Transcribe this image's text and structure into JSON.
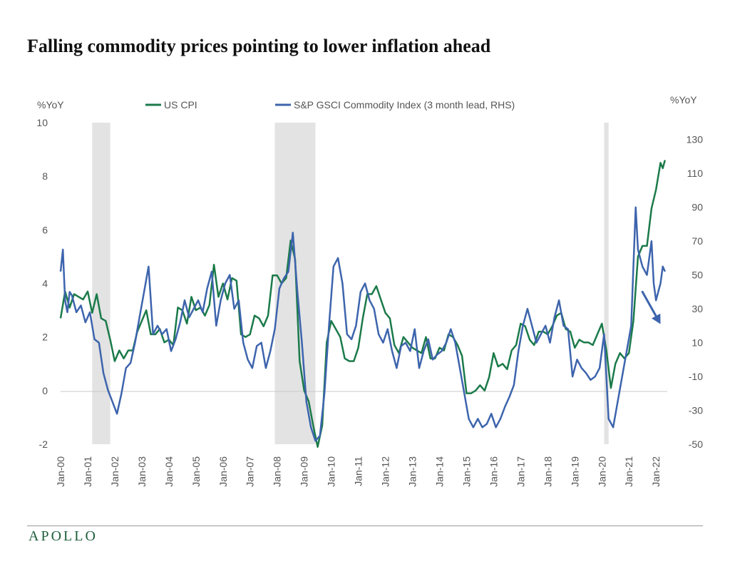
{
  "title": "Falling commodity prices pointing to lower inflation ahead",
  "brand": "APOLLO",
  "colors": {
    "cpi": "#1b7a4a",
    "gsci": "#3d64ad",
    "recession": "#e3e3e3",
    "axis": "#c8c8c8",
    "tick": "#555555"
  },
  "chart_data": {
    "type": "line",
    "title": "Falling commodity prices pointing to lower inflation ahead",
    "left_unit": "%YoY",
    "right_unit": "%YoY",
    "y_left": {
      "min": -2,
      "max": 10,
      "ticks": [
        "-2",
        "0",
        "2",
        "4",
        "6",
        "8",
        "10"
      ]
    },
    "y_right": {
      "min": -50,
      "max": 140,
      "ticks": [
        "-50",
        "-30",
        "-10",
        "10",
        "30",
        "50",
        "70",
        "90",
        "110",
        "130"
      ]
    },
    "x_range": [
      "2000-01",
      "2022-06"
    ],
    "x_ticks": [
      "Jan-00",
      "Jan-01",
      "Jan-02",
      "Jan-03",
      "Jan-04",
      "Jan-05",
      "Jan-06",
      "Jan-07",
      "Jan-08",
      "Jan-09",
      "Jan-10",
      "Jan-11",
      "Jan-12",
      "Jan-13",
      "Jan-14",
      "Jan-15",
      "Jan-16",
      "Jan-17",
      "Jan-18",
      "Jan-19",
      "Jan-20",
      "Jan-21",
      "Jan-22"
    ],
    "recessions": [
      [
        "2001-03",
        "2001-11"
      ],
      [
        "2007-12",
        "2009-06"
      ],
      [
        "2020-02",
        "2020-04"
      ]
    ],
    "legend_placement": "top",
    "grid": false,
    "annotation": "down-arrow",
    "arrow": {
      "from": [
        "2021-07",
        40
      ],
      "to": [
        "2022-03",
        21
      ]
    },
    "series": [
      {
        "name": "US CPI",
        "axis": "left",
        "color": "#1b7a4a",
        "points": [
          [
            "2000-01",
            2.7
          ],
          [
            "2000-03",
            3.7
          ],
          [
            "2000-05",
            3.1
          ],
          [
            "2000-07",
            3.6
          ],
          [
            "2000-09",
            3.5
          ],
          [
            "2000-11",
            3.4
          ],
          [
            "2001-01",
            3.7
          ],
          [
            "2001-03",
            2.9
          ],
          [
            "2001-05",
            3.6
          ],
          [
            "2001-07",
            2.7
          ],
          [
            "2001-09",
            2.6
          ],
          [
            "2001-11",
            1.9
          ],
          [
            "2002-01",
            1.1
          ],
          [
            "2002-03",
            1.5
          ],
          [
            "2002-05",
            1.2
          ],
          [
            "2002-07",
            1.5
          ],
          [
            "2002-09",
            1.5
          ],
          [
            "2002-11",
            2.2
          ],
          [
            "2003-01",
            2.6
          ],
          [
            "2003-03",
            3.0
          ],
          [
            "2003-05",
            2.1
          ],
          [
            "2003-07",
            2.1
          ],
          [
            "2003-09",
            2.3
          ],
          [
            "2003-11",
            1.8
          ],
          [
            "2004-01",
            1.9
          ],
          [
            "2004-03",
            1.7
          ],
          [
            "2004-05",
            3.1
          ],
          [
            "2004-07",
            3.0
          ],
          [
            "2004-09",
            2.5
          ],
          [
            "2004-11",
            3.5
          ],
          [
            "2005-01",
            3.0
          ],
          [
            "2005-03",
            3.1
          ],
          [
            "2005-05",
            2.8
          ],
          [
            "2005-07",
            3.2
          ],
          [
            "2005-09",
            4.7
          ],
          [
            "2005-11",
            3.5
          ],
          [
            "2006-01",
            4.0
          ],
          [
            "2006-03",
            3.4
          ],
          [
            "2006-05",
            4.2
          ],
          [
            "2006-07",
            4.1
          ],
          [
            "2006-09",
            2.1
          ],
          [
            "2006-11",
            2.0
          ],
          [
            "2007-01",
            2.1
          ],
          [
            "2007-03",
            2.8
          ],
          [
            "2007-05",
            2.7
          ],
          [
            "2007-07",
            2.4
          ],
          [
            "2007-09",
            2.8
          ],
          [
            "2007-11",
            4.3
          ],
          [
            "2008-01",
            4.3
          ],
          [
            "2008-03",
            4.0
          ],
          [
            "2008-05",
            4.2
          ],
          [
            "2008-07",
            5.6
          ],
          [
            "2008-09",
            4.9
          ],
          [
            "2008-11",
            1.1
          ],
          [
            "2009-01",
            0.0
          ],
          [
            "2009-03",
            -0.4
          ],
          [
            "2009-05",
            -1.3
          ],
          [
            "2009-07",
            -2.1
          ],
          [
            "2009-09",
            -1.3
          ],
          [
            "2009-11",
            1.8
          ],
          [
            "2010-01",
            2.6
          ],
          [
            "2010-03",
            2.3
          ],
          [
            "2010-05",
            2.0
          ],
          [
            "2010-07",
            1.2
          ],
          [
            "2010-09",
            1.1
          ],
          [
            "2010-11",
            1.1
          ],
          [
            "2011-01",
            1.6
          ],
          [
            "2011-03",
            2.7
          ],
          [
            "2011-05",
            3.6
          ],
          [
            "2011-07",
            3.6
          ],
          [
            "2011-09",
            3.9
          ],
          [
            "2011-11",
            3.4
          ],
          [
            "2012-01",
            2.9
          ],
          [
            "2012-03",
            2.7
          ],
          [
            "2012-05",
            1.7
          ],
          [
            "2012-07",
            1.4
          ],
          [
            "2012-09",
            2.0
          ],
          [
            "2012-11",
            1.8
          ],
          [
            "2013-01",
            1.6
          ],
          [
            "2013-03",
            1.5
          ],
          [
            "2013-05",
            1.4
          ],
          [
            "2013-07",
            2.0
          ],
          [
            "2013-09",
            1.2
          ],
          [
            "2013-11",
            1.2
          ],
          [
            "2014-01",
            1.6
          ],
          [
            "2014-03",
            1.5
          ],
          [
            "2014-05",
            2.1
          ],
          [
            "2014-07",
            2.0
          ],
          [
            "2014-09",
            1.7
          ],
          [
            "2014-11",
            1.3
          ],
          [
            "2015-01",
            -0.1
          ],
          [
            "2015-03",
            -0.1
          ],
          [
            "2015-05",
            0.0
          ],
          [
            "2015-07",
            0.2
          ],
          [
            "2015-09",
            0.0
          ],
          [
            "2015-11",
            0.5
          ],
          [
            "2016-01",
            1.4
          ],
          [
            "2016-03",
            0.9
          ],
          [
            "2016-05",
            1.0
          ],
          [
            "2016-07",
            0.8
          ],
          [
            "2016-09",
            1.5
          ],
          [
            "2016-11",
            1.7
          ],
          [
            "2017-01",
            2.5
          ],
          [
            "2017-03",
            2.4
          ],
          [
            "2017-05",
            1.9
          ],
          [
            "2017-07",
            1.7
          ],
          [
            "2017-09",
            2.2
          ],
          [
            "2017-11",
            2.2
          ],
          [
            "2018-01",
            2.1
          ],
          [
            "2018-03",
            2.4
          ],
          [
            "2018-05",
            2.8
          ],
          [
            "2018-07",
            2.9
          ],
          [
            "2018-09",
            2.3
          ],
          [
            "2018-11",
            2.2
          ],
          [
            "2019-01",
            1.6
          ],
          [
            "2019-03",
            1.9
          ],
          [
            "2019-05",
            1.8
          ],
          [
            "2019-07",
            1.8
          ],
          [
            "2019-09",
            1.7
          ],
          [
            "2019-11",
            2.1
          ],
          [
            "2020-01",
            2.5
          ],
          [
            "2020-03",
            1.5
          ],
          [
            "2020-05",
            0.1
          ],
          [
            "2020-07",
            1.0
          ],
          [
            "2020-09",
            1.4
          ],
          [
            "2020-11",
            1.2
          ],
          [
            "2021-01",
            1.4
          ],
          [
            "2021-03",
            2.6
          ],
          [
            "2021-05",
            5.0
          ],
          [
            "2021-07",
            5.4
          ],
          [
            "2021-09",
            5.4
          ],
          [
            "2021-11",
            6.8
          ],
          [
            "2022-01",
            7.5
          ],
          [
            "2022-03",
            8.5
          ],
          [
            "2022-04",
            8.3
          ],
          [
            "2022-05",
            8.6
          ]
        ]
      },
      {
        "name": "S&P GSCI Commodity Index (3 month lead, RHS)",
        "axis": "right",
        "color": "#3d64ad",
        "points": [
          [
            "2000-01",
            52
          ],
          [
            "2000-02",
            65
          ],
          [
            "2000-03",
            35
          ],
          [
            "2000-04",
            28
          ],
          [
            "2000-05",
            40
          ],
          [
            "2000-06",
            38
          ],
          [
            "2000-08",
            28
          ],
          [
            "2000-10",
            32
          ],
          [
            "2000-12",
            22
          ],
          [
            "2001-02",
            28
          ],
          [
            "2001-04",
            12
          ],
          [
            "2001-06",
            10
          ],
          [
            "2001-08",
            -8
          ],
          [
            "2001-10",
            -18
          ],
          [
            "2001-12",
            -25
          ],
          [
            "2002-02",
            -32
          ],
          [
            "2002-04",
            -20
          ],
          [
            "2002-06",
            -5
          ],
          [
            "2002-08",
            -2
          ],
          [
            "2002-10",
            10
          ],
          [
            "2002-12",
            25
          ],
          [
            "2003-02",
            40
          ],
          [
            "2003-04",
            55
          ],
          [
            "2003-06",
            15
          ],
          [
            "2003-08",
            20
          ],
          [
            "2003-10",
            15
          ],
          [
            "2003-12",
            18
          ],
          [
            "2004-02",
            5
          ],
          [
            "2004-04",
            12
          ],
          [
            "2004-06",
            22
          ],
          [
            "2004-08",
            35
          ],
          [
            "2004-10",
            25
          ],
          [
            "2004-12",
            30
          ],
          [
            "2005-02",
            35
          ],
          [
            "2005-04",
            28
          ],
          [
            "2005-06",
            42
          ],
          [
            "2005-08",
            52
          ],
          [
            "2005-10",
            20
          ],
          [
            "2005-12",
            35
          ],
          [
            "2006-02",
            45
          ],
          [
            "2006-04",
            50
          ],
          [
            "2006-06",
            30
          ],
          [
            "2006-08",
            35
          ],
          [
            "2006-10",
            10
          ],
          [
            "2006-12",
            0
          ],
          [
            "2007-02",
            -5
          ],
          [
            "2007-04",
            8
          ],
          [
            "2007-06",
            10
          ],
          [
            "2007-08",
            -5
          ],
          [
            "2007-10",
            5
          ],
          [
            "2007-12",
            18
          ],
          [
            "2008-02",
            42
          ],
          [
            "2008-04",
            48
          ],
          [
            "2008-06",
            52
          ],
          [
            "2008-08",
            75
          ],
          [
            "2008-10",
            40
          ],
          [
            "2008-12",
            10
          ],
          [
            "2009-02",
            -25
          ],
          [
            "2009-04",
            -40
          ],
          [
            "2009-06",
            -48
          ],
          [
            "2009-08",
            -45
          ],
          [
            "2009-10",
            -20
          ],
          [
            "2009-12",
            20
          ],
          [
            "2010-02",
            55
          ],
          [
            "2010-04",
            60
          ],
          [
            "2010-06",
            45
          ],
          [
            "2010-08",
            15
          ],
          [
            "2010-10",
            12
          ],
          [
            "2010-12",
            20
          ],
          [
            "2011-02",
            40
          ],
          [
            "2011-04",
            45
          ],
          [
            "2011-06",
            35
          ],
          [
            "2011-08",
            30
          ],
          [
            "2011-10",
            15
          ],
          [
            "2011-12",
            10
          ],
          [
            "2012-02",
            18
          ],
          [
            "2012-04",
            5
          ],
          [
            "2012-06",
            -5
          ],
          [
            "2012-08",
            8
          ],
          [
            "2012-10",
            10
          ],
          [
            "2012-12",
            5
          ],
          [
            "2013-02",
            18
          ],
          [
            "2013-04",
            -5
          ],
          [
            "2013-06",
            5
          ],
          [
            "2013-08",
            12
          ],
          [
            "2013-10",
            0
          ],
          [
            "2013-12",
            3
          ],
          [
            "2014-02",
            5
          ],
          [
            "2014-04",
            10
          ],
          [
            "2014-06",
            18
          ],
          [
            "2014-08",
            10
          ],
          [
            "2014-10",
            -5
          ],
          [
            "2014-12",
            -20
          ],
          [
            "2015-02",
            -35
          ],
          [
            "2015-04",
            -40
          ],
          [
            "2015-06",
            -35
          ],
          [
            "2015-08",
            -40
          ],
          [
            "2015-10",
            -38
          ],
          [
            "2015-12",
            -32
          ],
          [
            "2016-02",
            -40
          ],
          [
            "2016-04",
            -35
          ],
          [
            "2016-06",
            -28
          ],
          [
            "2016-08",
            -22
          ],
          [
            "2016-10",
            -15
          ],
          [
            "2016-12",
            5
          ],
          [
            "2017-02",
            20
          ],
          [
            "2017-04",
            30
          ],
          [
            "2017-06",
            20
          ],
          [
            "2017-08",
            10
          ],
          [
            "2017-10",
            15
          ],
          [
            "2017-12",
            20
          ],
          [
            "2018-02",
            10
          ],
          [
            "2018-04",
            25
          ],
          [
            "2018-06",
            35
          ],
          [
            "2018-08",
            20
          ],
          [
            "2018-10",
            18
          ],
          [
            "2018-12",
            -10
          ],
          [
            "2019-02",
            0
          ],
          [
            "2019-04",
            -5
          ],
          [
            "2019-06",
            -8
          ],
          [
            "2019-08",
            -12
          ],
          [
            "2019-10",
            -10
          ],
          [
            "2019-12",
            -5
          ],
          [
            "2020-02",
            15
          ],
          [
            "2020-04",
            -35
          ],
          [
            "2020-06",
            -40
          ],
          [
            "2020-08",
            -25
          ],
          [
            "2020-10",
            -10
          ],
          [
            "2020-12",
            5
          ],
          [
            "2021-02",
            20
          ],
          [
            "2021-03",
            55
          ],
          [
            "2021-04",
            90
          ],
          [
            "2021-05",
            65
          ],
          [
            "2021-06",
            60
          ],
          [
            "2021-07",
            55
          ],
          [
            "2021-09",
            50
          ],
          [
            "2021-11",
            70
          ],
          [
            "2021-12",
            45
          ],
          [
            "2022-01",
            35
          ],
          [
            "2022-02",
            40
          ],
          [
            "2022-03",
            45
          ],
          [
            "2022-04",
            55
          ],
          [
            "2022-05",
            52
          ]
        ]
      }
    ]
  }
}
